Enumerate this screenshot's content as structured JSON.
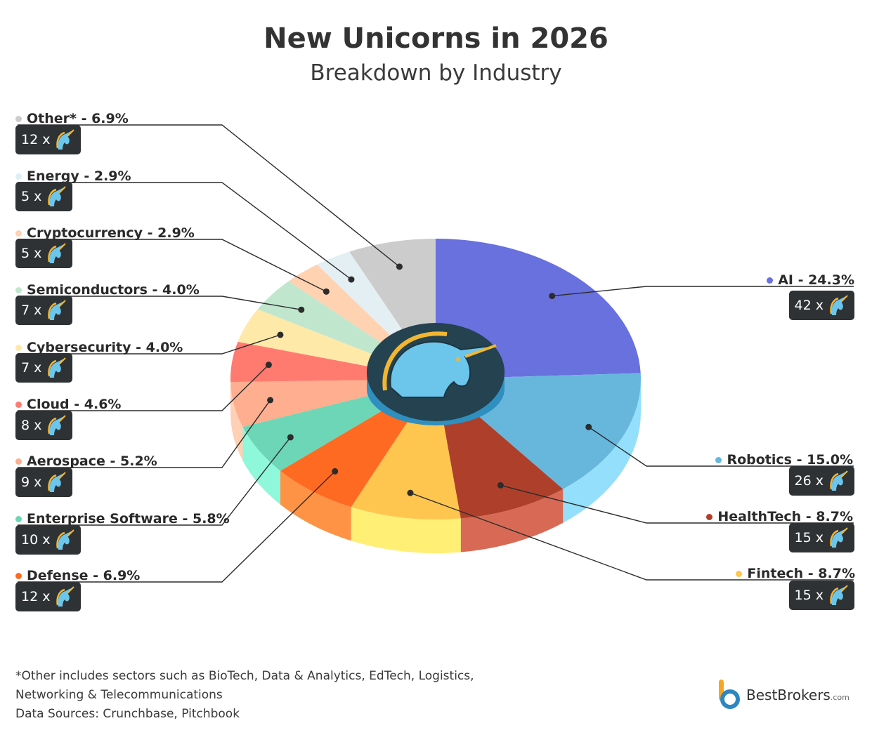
{
  "header": {
    "title": "New Unicorns in 2026",
    "subtitle": "Breakdown by Industry"
  },
  "chart_data": {
    "type": "pie",
    "title": "New Unicorns in 2026",
    "subtitle": "Breakdown by Industry",
    "slices": [
      {
        "label": "AI",
        "percent": 24.3,
        "count": 42,
        "color": "#6871DD",
        "side_color": "#5059C4",
        "display": "AI - 24.3%",
        "badge": "42 x"
      },
      {
        "label": "Robotics",
        "percent": 15.0,
        "count": 26,
        "color": "#67B7DD",
        "side_color": "#94DFFC",
        "display": "Robotics - 15.0%",
        "badge": "26 x"
      },
      {
        "label": "HealthTech",
        "percent": 8.7,
        "count": 15,
        "color": "#AE402B",
        "side_color": "#D86A55",
        "display": "HealthTech - 8.7%",
        "badge": "15 x"
      },
      {
        "label": "Fintech",
        "percent": 8.7,
        "count": 15,
        "color": "#FFC64F",
        "side_color": "#FFEF75",
        "display": "Fintech - 8.7%",
        "badge": "15 x"
      },
      {
        "label": "Defense",
        "percent": 6.9,
        "count": 12,
        "color": "#FF6A22",
        "side_color": "#FF9345",
        "display": "Defense - 6.9%",
        "badge": "12 x"
      },
      {
        "label": "Enterprise Software",
        "percent": 5.8,
        "count": 10,
        "color": "#6DD6B6",
        "side_color": "#8FF7DA",
        "display": "Enterprise Software - 5.8%",
        "badge": "10 x"
      },
      {
        "label": "Aerospace",
        "percent": 5.2,
        "count": 9,
        "color": "#FFAE8F",
        "side_color": "#FFD0B5",
        "display": "Aerospace - 5.2%",
        "badge": "9 x"
      },
      {
        "label": "Cloud",
        "percent": 4.6,
        "count": 8,
        "color": "#FF7B70",
        "side_color": "#FF9C92",
        "display": "Cloud - 4.6%",
        "badge": "8 x"
      },
      {
        "label": "Cybersecurity",
        "percent": 4.0,
        "count": 7,
        "color": "#FFE9A8",
        "side_color": "#FFF3C9",
        "display": "Cybersecurity - 4.0%",
        "badge": "7 x"
      },
      {
        "label": "Semiconductors",
        "percent": 4.0,
        "count": 7,
        "color": "#C1E6CE",
        "side_color": "#DCF2E4",
        "display": "Semiconductors - 4.0%",
        "badge": "7 x"
      },
      {
        "label": "Cryptocurrency",
        "percent": 2.9,
        "count": 5,
        "color": "#FFD2B2",
        "side_color": "#FFE4D0",
        "display": "Cryptocurrency - 2.9%",
        "badge": "5 x"
      },
      {
        "label": "Energy",
        "percent": 2.9,
        "count": 5,
        "color": "#E3EFF3",
        "side_color": "#EEF6F8",
        "display": "Energy - 2.9%",
        "badge": "5 x"
      },
      {
        "label": "Other*",
        "percent": 6.9,
        "count": 12,
        "color": "#CCCCCC",
        "side_color": "#DDDDDD",
        "display": "Other* - 6.9%",
        "badge": "12 x"
      }
    ]
  },
  "footnote": {
    "line1": "*Other includes sectors such as BioTech, Data & Analytics, EdTech, Logistics,",
    "line2": "Networking & Telecommunications",
    "line3": "Data Sources: Crunchbase, Pitchbook"
  },
  "brand": {
    "name": "BestBrokers",
    "suffix": ".com"
  },
  "icons": {
    "badge_icon": "unicorn-head-icon",
    "center_icon": "unicorn-emblem-icon",
    "brand_icon": "bestbrokers-logo-icon"
  }
}
